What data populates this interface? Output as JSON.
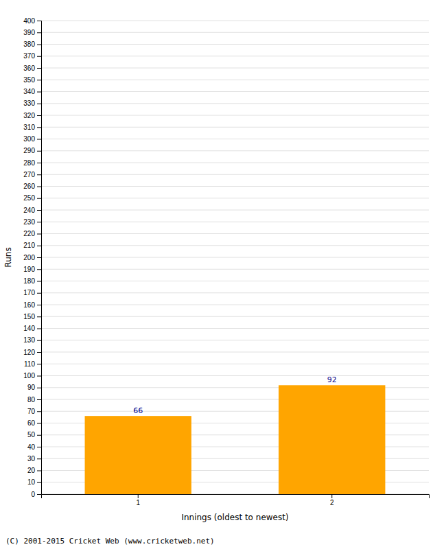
{
  "chart_data": {
    "type": "bar",
    "categories": [
      "1",
      "2"
    ],
    "values": [
      66,
      92
    ],
    "color": "#FFA500",
    "xlabel": "Innings (oldest to newest)",
    "ylabel": "Runs",
    "ylim": [
      0,
      400
    ],
    "yticks": [
      0,
      10,
      20,
      30,
      40,
      50,
      60,
      70,
      80,
      90,
      100,
      110,
      120,
      130,
      140,
      150,
      160,
      170,
      180,
      190,
      200,
      210,
      220,
      230,
      240,
      250,
      260,
      270,
      280,
      290,
      300,
      310,
      320,
      330,
      340,
      350,
      360,
      370,
      380,
      390,
      400
    ],
    "grid": true,
    "data_labels": true,
    "annotations": [
      "(C) 2001-2015 Cricket Web (www.cricketweb.net)"
    ]
  }
}
